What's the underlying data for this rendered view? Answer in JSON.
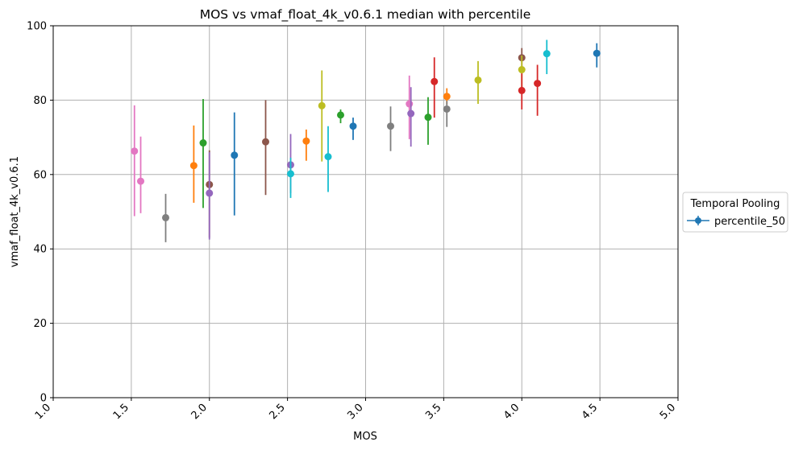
{
  "chart_data": {
    "type": "scatter",
    "title": "MOS vs vmaf_float_4k_v0.6.1 median with percentile",
    "xlabel": "MOS",
    "ylabel": "vmaf_float_4k_v0.6.1",
    "xlim": [
      1.0,
      5.0
    ],
    "ylim": [
      0,
      100
    ],
    "x_ticks": [
      "1.0",
      "1.5",
      "2.0",
      "2.5",
      "3.0",
      "3.5",
      "4.0",
      "4.5",
      "5.0"
    ],
    "y_ticks": [
      "0",
      "20",
      "40",
      "60",
      "80",
      "100"
    ],
    "grid": true,
    "legend": {
      "title": "Temporal Pooling",
      "placement": "right-outside",
      "entries": [
        {
          "label": "percentile_50",
          "color": "#1f77b4"
        }
      ]
    },
    "points": [
      {
        "x": 1.52,
        "y": 66.3,
        "low": 48.8,
        "high": 78.6,
        "color": "#e377c2"
      },
      {
        "x": 1.56,
        "y": 58.2,
        "low": 49.6,
        "high": 70.2,
        "color": "#e377c2"
      },
      {
        "x": 1.72,
        "y": 48.4,
        "low": 41.8,
        "high": 54.8,
        "color": "#7f7f7f"
      },
      {
        "x": 1.9,
        "y": 62.4,
        "low": 52.4,
        "high": 73.2,
        "color": "#ff7f0e"
      },
      {
        "x": 1.96,
        "y": 68.5,
        "low": 51.0,
        "high": 80.3,
        "color": "#2ca02c"
      },
      {
        "x": 2.0,
        "y": 57.3,
        "low": 43.0,
        "high": 66.5,
        "color": "#8c564b"
      },
      {
        "x": 2.0,
        "y": 55.0,
        "low": 42.5,
        "high": 66.0,
        "color": "#9467bd"
      },
      {
        "x": 2.16,
        "y": 65.2,
        "low": 49.0,
        "high": 76.7,
        "color": "#1f77b4"
      },
      {
        "x": 2.36,
        "y": 68.8,
        "low": 54.5,
        "high": 80.0,
        "color": "#8c564b"
      },
      {
        "x": 2.52,
        "y": 62.6,
        "low": 55.0,
        "high": 70.9,
        "color": "#9467bd"
      },
      {
        "x": 2.52,
        "y": 60.2,
        "low": 53.7,
        "high": 64.5,
        "color": "#17becf"
      },
      {
        "x": 2.62,
        "y": 69.0,
        "low": 63.7,
        "high": 72.1,
        "color": "#ff7f0e"
      },
      {
        "x": 2.72,
        "y": 78.5,
        "low": 63.5,
        "high": 88.0,
        "color": "#bcbd22"
      },
      {
        "x": 2.76,
        "y": 64.8,
        "low": 55.3,
        "high": 73.0,
        "color": "#17becf"
      },
      {
        "x": 2.84,
        "y": 76.0,
        "low": 73.8,
        "high": 77.5,
        "color": "#2ca02c"
      },
      {
        "x": 2.92,
        "y": 73.0,
        "low": 69.3,
        "high": 75.3,
        "color": "#1f77b4"
      },
      {
        "x": 3.16,
        "y": 73.0,
        "low": 66.3,
        "high": 78.3,
        "color": "#7f7f7f"
      },
      {
        "x": 3.28,
        "y": 79.0,
        "low": 69.5,
        "high": 86.6,
        "color": "#e377c2"
      },
      {
        "x": 3.29,
        "y": 76.4,
        "low": 67.5,
        "high": 83.5,
        "color": "#9467bd"
      },
      {
        "x": 3.4,
        "y": 75.4,
        "low": 68.0,
        "high": 80.8,
        "color": "#2ca02c"
      },
      {
        "x": 3.44,
        "y": 85.0,
        "low": 75.3,
        "high": 91.5,
        "color": "#d62728"
      },
      {
        "x": 3.52,
        "y": 81.0,
        "low": 78.8,
        "high": 83.2,
        "color": "#ff7f0e"
      },
      {
        "x": 3.52,
        "y": 77.6,
        "low": 72.8,
        "high": 79.8,
        "color": "#7f7f7f"
      },
      {
        "x": 3.72,
        "y": 85.4,
        "low": 79.0,
        "high": 90.5,
        "color": "#bcbd22"
      },
      {
        "x": 4.0,
        "y": 91.4,
        "low": 88.0,
        "high": 94.0,
        "color": "#8c564b"
      },
      {
        "x": 4.0,
        "y": 88.2,
        "low": 82.5,
        "high": 92.0,
        "color": "#bcbd22"
      },
      {
        "x": 4.0,
        "y": 82.6,
        "low": 77.5,
        "high": 87.2,
        "color": "#d62728"
      },
      {
        "x": 4.1,
        "y": 84.5,
        "low": 75.8,
        "high": 89.5,
        "color": "#d62728"
      },
      {
        "x": 4.16,
        "y": 92.5,
        "low": 87.0,
        "high": 96.2,
        "color": "#17becf"
      },
      {
        "x": 4.48,
        "y": 92.6,
        "low": 88.8,
        "high": 95.3,
        "color": "#1f77b4"
      }
    ]
  }
}
